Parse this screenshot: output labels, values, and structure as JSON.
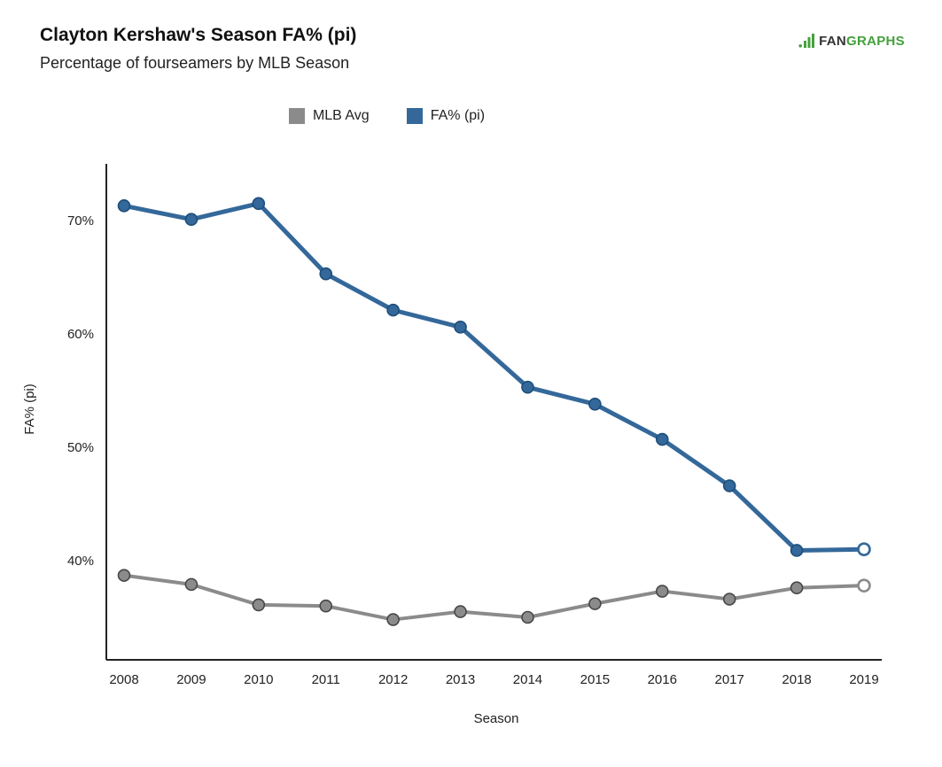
{
  "header": {
    "title": "Clayton Kershaw's Season FA% (pi)",
    "subtitle": "Percentage of fourseamers by MLB Season",
    "logo": {
      "fan": "FAN",
      "graphs": "GRAPHS",
      "icon_color": "#44a13c"
    }
  },
  "legend": {
    "position": "top",
    "items": [
      {
        "label": "MLB Avg",
        "color": "#8b8b8b"
      },
      {
        "label": "FA% (pi)",
        "color": "#34689a"
      }
    ]
  },
  "chart_data": {
    "type": "line",
    "title": "Clayton Kershaw's Season FA% (pi)",
    "subtitle": "Percentage of fourseamers by MLB Season",
    "xlabel": "Season",
    "ylabel": "FA% (pi)",
    "categories": [
      "2008",
      "2009",
      "2010",
      "2011",
      "2012",
      "2013",
      "2014",
      "2015",
      "2016",
      "2017",
      "2018",
      "2019"
    ],
    "y_ticks": [
      "40%",
      "50%",
      "60%",
      "70%"
    ],
    "y_tick_values": [
      40,
      50,
      60,
      70
    ],
    "ylim": [
      31.5,
      75
    ],
    "grid": false,
    "legend_position": "top-center",
    "series": [
      {
        "name": "MLB Avg",
        "color": "#8b8b8b",
        "marker_edge": "#474747",
        "line_width": 4,
        "last_marker_open": true,
        "values": [
          38.7,
          37.9,
          36.1,
          36.0,
          34.8,
          35.5,
          35.0,
          36.2,
          37.3,
          36.6,
          37.6,
          37.8
        ]
      },
      {
        "name": "FA% (pi)",
        "color": "#34689a",
        "marker_edge": "#1d4e79",
        "line_width": 5,
        "last_marker_open": true,
        "values": [
          71.3,
          70.1,
          71.5,
          65.3,
          62.1,
          60.6,
          55.3,
          53.8,
          50.7,
          46.6,
          40.9,
          41.0
        ]
      }
    ]
  }
}
